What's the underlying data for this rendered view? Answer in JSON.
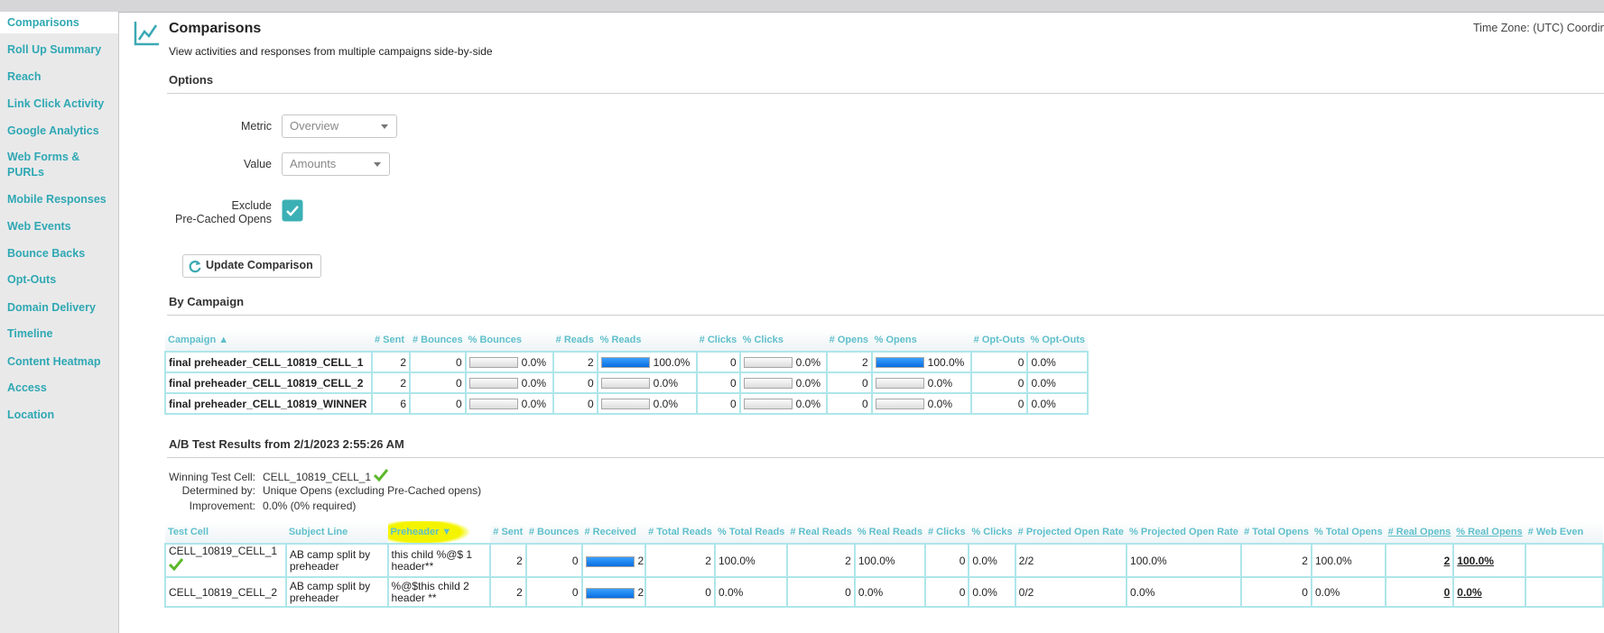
{
  "sidebar": {
    "active": 0,
    "items": [
      "Comparisons",
      "Roll Up Summary",
      "Reach",
      "Link Click Activity",
      "Google Analytics",
      "Web Forms & PURLs",
      "Mobile Responses",
      "Web Events",
      "Bounce Backs",
      "Opt-Outs",
      "Domain Delivery",
      "Timeline",
      "Content Heatmap",
      "Access",
      "Location"
    ]
  },
  "header": {
    "title": "Comparisons",
    "subtitle": "View activities and responses from multiple campaigns side-by-side",
    "timezone": "Time Zone: (UTC) Coordina"
  },
  "options": {
    "heading": "Options",
    "metric": {
      "label": "Metric",
      "value": "Overview"
    },
    "value": {
      "label": "Value",
      "value": "Amounts"
    },
    "exclude": {
      "label_lines": [
        "Exclude",
        "Pre-Cached Opens"
      ],
      "checked": true
    },
    "button": "Update Comparison"
  },
  "by_campaign": {
    "heading": "By Campaign",
    "columns": [
      "Campaign ▲",
      "# Sent",
      "# Bounces",
      "% Bounces",
      "# Reads",
      "% Reads",
      "# Clicks",
      "% Clicks",
      "# Opens",
      "% Opens",
      "# Opt-Outs",
      "% Opt-Outs"
    ],
    "rows": [
      [
        "final preheader_CELL_10819_CELL_1",
        2,
        0,
        "0.0%",
        2,
        "100.0%",
        0,
        "0.0%",
        2,
        "100.0%",
        0,
        "0.0%"
      ],
      [
        "final preheader_CELL_10819_CELL_2",
        2,
        0,
        "0.0%",
        0,
        "0.0%",
        0,
        "0.0%",
        0,
        "0.0%",
        0,
        "0.0%"
      ],
      [
        "final preheader_CELL_10819_WINNER",
        6,
        0,
        "0.0%",
        0,
        "0.0%",
        0,
        "0.0%",
        0,
        "0.0%",
        0,
        "0.0%"
      ]
    ]
  },
  "ab_test": {
    "heading": "A/B Test Results from 2/1/2023 2:55:26 AM",
    "info": [
      {
        "label": "Winning Test Cell:",
        "value": "CELL_10819_CELL_1"
      },
      {
        "label": "Determined by:",
        "value": "Unique Opens (excluding Pre-Cached opens)"
      },
      {
        "label": "Improvement:",
        "value": "0.0% (0% required)"
      }
    ],
    "winner_row": 0,
    "columns": [
      "Test Cell",
      "Subject Line",
      "Preheader ▼",
      "# Sent",
      "# Bounces",
      "# Received",
      "# Total Reads",
      "% Total Reads",
      "# Real Reads",
      "% Real Reads",
      "# Clicks",
      "% Clicks",
      "# Projected Open Rate",
      "% Projected Open Rate",
      "# Total Opens",
      "% Total Opens",
      "# Real Opens",
      "% Real Opens",
      "# Web Even"
    ],
    "rows": [
      [
        "CELL_10819_CELL_1",
        "AB camp split by preheader",
        "this child %@$ 1 header**",
        2,
        0,
        2,
        2,
        "100.0%",
        2,
        "100.0%",
        0,
        "0.0%",
        "2/2",
        "100.0%",
        2,
        "100.0%",
        2,
        "100.0%"
      ],
      [
        "CELL_10819_CELL_2",
        "AB camp split by preheader",
        "%@$this child 2 header **",
        2,
        0,
        2,
        0,
        "0.0%",
        0,
        "0.0%",
        0,
        "0.0%",
        "0/2",
        "0.0%",
        0,
        "0.0%",
        0,
        "0.0%"
      ]
    ]
  }
}
